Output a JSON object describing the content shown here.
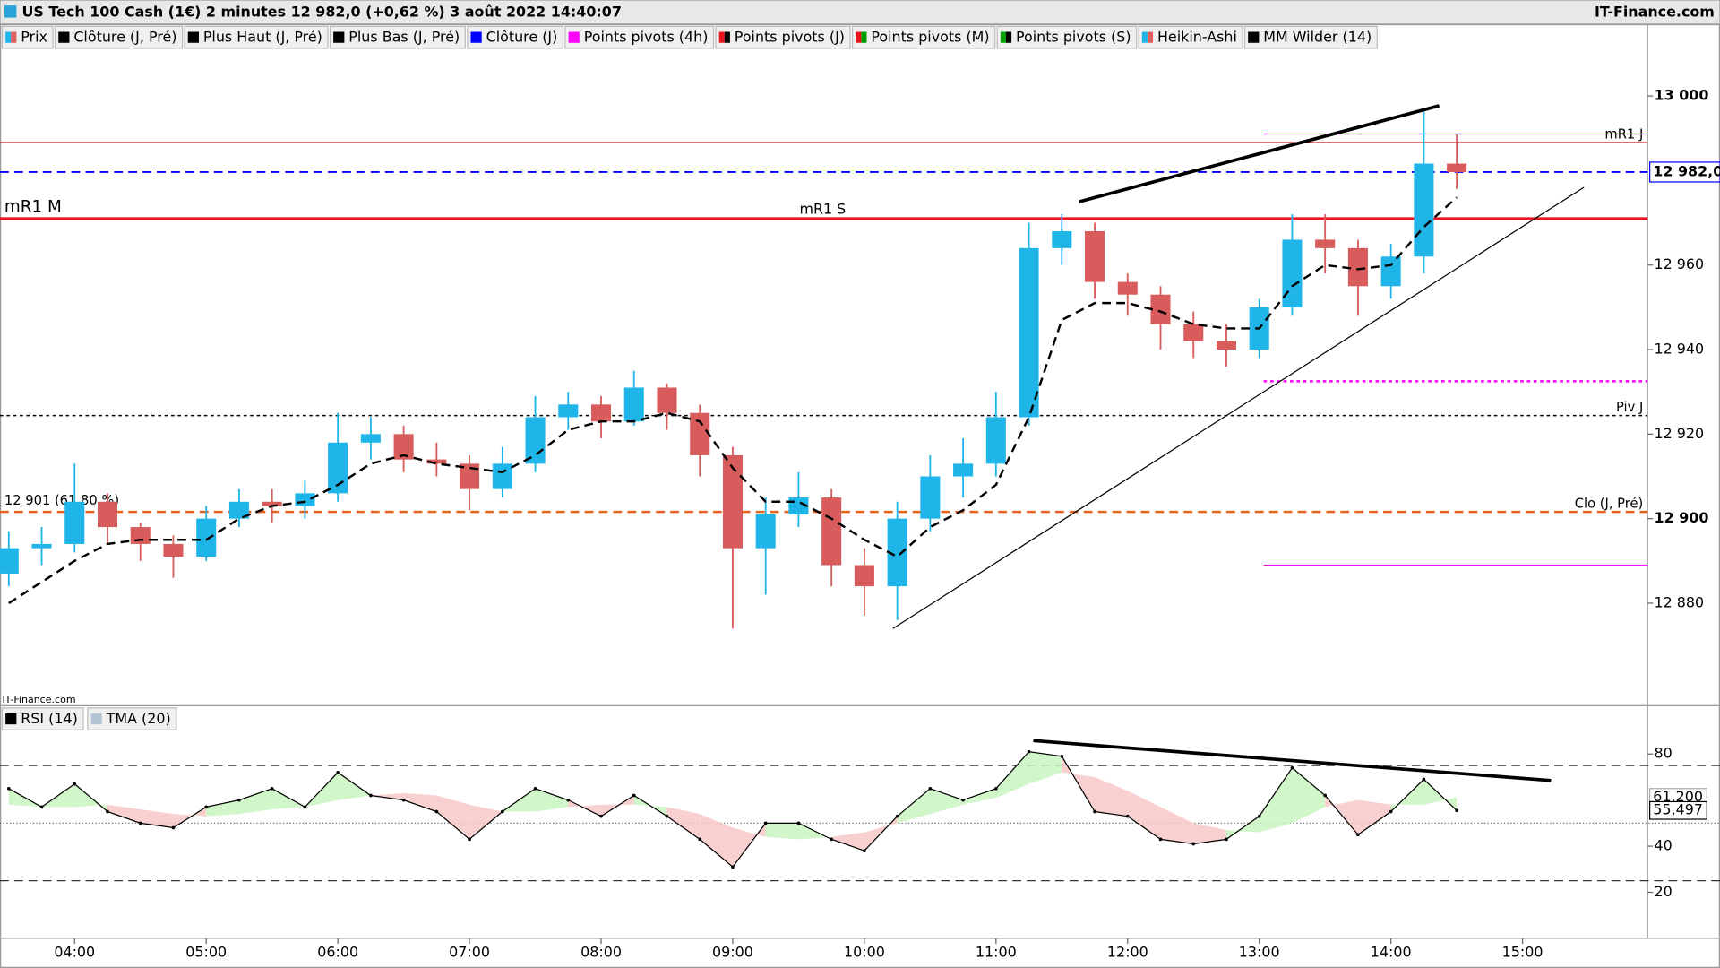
{
  "header": {
    "title": "US Tech 100 Cash (1€) 2 minutes 12 982,0 (+0,62 %) 3 août 2022 14:40:07",
    "brand": "IT-Finance.com"
  },
  "chart_data": [
    {
      "type": "candlestick",
      "watermark": "IT-Finance.com",
      "legend": [
        {
          "name": "Prix",
          "colors": [
            "#1fb5e8",
            "#e06060"
          ]
        },
        {
          "name": "Clôture (J, Pré)",
          "colors": [
            "#000000"
          ]
        },
        {
          "name": "Plus Haut (J, Pré)",
          "colors": [
            "#000000"
          ]
        },
        {
          "name": "Plus Bas (J, Pré)",
          "colors": [
            "#000000"
          ]
        },
        {
          "name": "Clôture (J)",
          "colors": [
            "#0000ff"
          ]
        },
        {
          "name": "Points pivots (4h)",
          "colors": [
            "#ff00ff"
          ]
        },
        {
          "name": "Points pivots (J)",
          "colors": [
            "#e8141e",
            "#000000"
          ]
        },
        {
          "name": "Points pivots (M)",
          "colors": [
            "#e8141e",
            "#00a000"
          ]
        },
        {
          "name": "Points pivots (S)",
          "colors": [
            "#00a000",
            "#000000"
          ]
        },
        {
          "name": "Heikin-Ashi",
          "colors": [
            "#1fb5e8",
            "#e06060"
          ]
        },
        {
          "name": "MM Wilder (14)",
          "colors": [
            "#000000"
          ]
        }
      ],
      "up_color": "#1fb5e8",
      "down_color": "#d85c5c",
      "xlim": [
        "03:26",
        "15:57"
      ],
      "xticks": [
        "04:00",
        "05:00",
        "06:00",
        "07:00",
        "08:00",
        "09:00",
        "10:00",
        "11:00",
        "12:00",
        "13:00",
        "14:00",
        "15:00"
      ],
      "ylim": [
        12856,
        13017
      ],
      "yticks": [
        {
          "value": 12880,
          "label": "12 880"
        },
        {
          "value": 12900,
          "label": "12 900"
        },
        {
          "value": 12920,
          "label": "12 920"
        },
        {
          "value": 12940,
          "label": "12 940"
        },
        {
          "value": 12960,
          "label": "12 960"
        },
        {
          "value": 13000,
          "label": "13 000"
        }
      ],
      "x": [
        "03:30",
        "03:45",
        "04:00",
        "04:15",
        "04:30",
        "04:45",
        "05:00",
        "05:15",
        "05:30",
        "05:45",
        "06:00",
        "06:15",
        "06:30",
        "06:45",
        "07:00",
        "07:15",
        "07:30",
        "07:45",
        "08:00",
        "08:15",
        "08:30",
        "08:45",
        "09:00",
        "09:15",
        "09:30",
        "09:45",
        "10:00",
        "10:15",
        "10:30",
        "10:45",
        "11:00",
        "11:15",
        "11:30",
        "11:45",
        "12:00",
        "12:15",
        "12:30",
        "12:45",
        "13:00",
        "13:15",
        "13:30",
        "13:45",
        "14:00",
        "14:15",
        "14:30"
      ],
      "open": [
        12887,
        12893,
        12894,
        12904,
        12898,
        12894,
        12891,
        12900,
        12904,
        12903,
        12906,
        12918,
        12920,
        12914,
        12913,
        12907,
        12913,
        12924,
        12927,
        12923,
        12931,
        12925,
        12915,
        12893,
        12901,
        12905,
        12889,
        12884,
        12900,
        12910,
        12913,
        12924,
        12964,
        12968,
        12956,
        12953,
        12946,
        12942,
        12940,
        12950,
        12966,
        12964,
        12955,
        12962,
        12984
      ],
      "high": [
        12897,
        12898,
        12913,
        12906,
        12899,
        12896,
        12903,
        12907,
        12907,
        12909,
        12925,
        12924,
        12922,
        12918,
        12915,
        12917,
        12929,
        12930,
        12929,
        12935,
        12932,
        12927,
        12917,
        12905,
        12911,
        12907,
        12893,
        12904,
        12915,
        12919,
        12930,
        12970,
        12972,
        12970,
        12958,
        12955,
        12949,
        12946,
        12952,
        12972,
        12972,
        12966,
        12965,
        12997,
        12991
      ],
      "low": [
        12884,
        12889,
        12892,
        12894,
        12890,
        12886,
        12890,
        12898,
        12899,
        12900,
        12904,
        12914,
        12911,
        12910,
        12902,
        12905,
        12911,
        12921,
        12919,
        12922,
        12921,
        12910,
        12874,
        12882,
        12898,
        12884,
        12877,
        12876,
        12897,
        12905,
        12910,
        12922,
        12960,
        12952,
        12948,
        12940,
        12938,
        12936,
        12938,
        12948,
        12958,
        12948,
        12952,
        12958,
        12978
      ],
      "close": [
        12893,
        12894,
        12904,
        12898,
        12894,
        12891,
        12900,
        12904,
        12903,
        12906,
        12918,
        12920,
        12914,
        12913,
        12907,
        12913,
        12924,
        12927,
        12923,
        12931,
        12925,
        12915,
        12893,
        12901,
        12905,
        12889,
        12884,
        12900,
        12910,
        12913,
        12924,
        12964,
        12968,
        12956,
        12953,
        12946,
        12942,
        12940,
        12950,
        12966,
        12964,
        12955,
        12962,
        12984,
        12982
      ],
      "series": [
        {
          "name": "MM Wilder (14)",
          "color": "#000000",
          "values": [
            12880,
            12885,
            12890,
            12894,
            12895,
            12895,
            12895,
            12900,
            12903,
            12904,
            12908,
            12913,
            12915,
            12913,
            12912,
            12911,
            12915,
            12921,
            12923,
            12923,
            12925,
            12923,
            12912,
            12904,
            12904,
            12900,
            12895,
            12891,
            12898,
            12902,
            12908,
            12924,
            12947,
            12951,
            12951,
            12949,
            12946,
            12945,
            12945,
            12955,
            12960,
            12959,
            12960,
            12969,
            12976
          ]
        }
      ],
      "levels": [
        {
          "value": 12971,
          "color": "#e8141e",
          "width": 2.5,
          "style": "solid",
          "label_left": "mR1 M",
          "label_center": "mR1 S"
        },
        {
          "value": 12989,
          "color": "#e8141e",
          "width": 1,
          "style": "solid",
          "label_right": "mR1 J"
        },
        {
          "value": 12991,
          "color": "#e81ee8",
          "width": 1,
          "style": "solid",
          "from": "13:02"
        },
        {
          "value": 12982,
          "color": "#0000ff",
          "width": 1.5,
          "style": "dashed"
        },
        {
          "value": 12932.5,
          "color": "#ff00ff",
          "width": 2,
          "style": "dotted",
          "from": "13:02"
        },
        {
          "value": 12924.4,
          "color": "#000000",
          "width": 1.2,
          "style": "dotted",
          "label_right": "Piv J"
        },
        {
          "value": 12901.6,
          "color": "#e8641e",
          "width": 2,
          "style": "dashed",
          "label_left": "12 901 (61,80 %)",
          "label_right": "Clo (J, Pré)"
        },
        {
          "value": 12889,
          "color": "#e81ee8",
          "width": 1,
          "style": "solid",
          "from": "13:02"
        }
      ],
      "trendlines": [
        {
          "x": [
            "11:38",
            "14:22"
          ],
          "y": [
            12975,
            12997.7
          ],
          "width": 3
        },
        {
          "x": [
            "10:13",
            "15:28"
          ],
          "y": [
            12874,
            12978.4
          ],
          "width": 1
        }
      ],
      "last": {
        "value": 12982.0,
        "label": "12 982,0"
      }
    },
    {
      "type": "line",
      "ylim": [
        0,
        100
      ],
      "yticks": [
        20,
        40,
        80
      ],
      "bands": [
        25,
        75
      ],
      "midline": 50,
      "series": [
        {
          "name": "RSI (14)",
          "color": "#000000",
          "values": [
            65,
            57,
            67,
            55,
            50,
            48,
            57,
            60,
            65,
            57,
            72,
            62,
            60,
            55,
            43,
            55,
            65,
            60,
            53,
            62,
            53,
            43,
            31,
            50,
            50,
            43,
            38,
            53,
            65,
            60,
            65,
            81,
            79,
            55,
            53,
            43,
            41,
            43,
            53,
            74,
            62,
            45,
            55,
            69,
            55.497
          ]
        },
        {
          "name": "TMA (20)",
          "color": "#b4c4d4",
          "values": [
            58,
            57,
            57,
            58,
            56,
            54,
            53,
            54,
            56,
            57,
            60,
            62,
            63,
            62,
            58,
            55,
            55,
            57,
            58,
            58,
            57,
            54,
            48,
            44,
            43,
            44,
            46,
            50,
            54,
            58,
            61,
            67,
            72,
            70,
            64,
            57,
            50,
            47,
            46,
            50,
            57,
            60,
            58,
            58,
            61.2
          ]
        }
      ],
      "above_color": "#c8f5c0",
      "below_color": "#f8c8c8",
      "trendlines": [
        {
          "x": [
            "11:17",
            "15:13"
          ],
          "y": [
            85.8,
            68.5
          ],
          "width": 3
        }
      ],
      "last_labels": [
        {
          "value": 61.2,
          "label": "61,200"
        },
        {
          "value": 55.497,
          "label": "55,497"
        }
      ]
    }
  ]
}
